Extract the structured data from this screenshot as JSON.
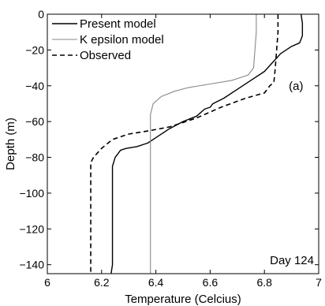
{
  "chart_data": {
    "type": "line",
    "xlabel": "Temperature (Celcius)",
    "ylabel": "Depth (m)",
    "xlim": [
      6,
      7
    ],
    "ylim": [
      -145,
      0
    ],
    "xticks": [
      6,
      6.2,
      6.4,
      6.6,
      6.8,
      7
    ],
    "xtick_labels": [
      "6",
      "6.2",
      "6.4",
      "6.6",
      "6.8",
      "7"
    ],
    "yticks": [
      0,
      -20,
      -40,
      -60,
      -80,
      -100,
      -120,
      -140
    ],
    "ytick_labels": [
      "0",
      "−20",
      "−40",
      "−60",
      "−80",
      "−100",
      "−120",
      "−140"
    ],
    "grid": false,
    "legend_position": "top-left",
    "annotations": [
      {
        "text": "(a)",
        "position": "right-upper"
      },
      {
        "text": "Day 124",
        "position": "bottom-right"
      }
    ],
    "series": [
      {
        "name": "Present model",
        "color": "#000000",
        "style": "solid",
        "x": [
          6.935,
          6.94,
          6.94,
          6.93,
          6.9,
          6.86,
          6.83,
          6.8,
          6.75,
          6.7,
          6.65,
          6.61,
          6.6,
          6.58,
          6.55,
          6.5,
          6.45,
          6.4,
          6.37,
          6.33,
          6.29,
          6.27,
          6.25,
          6.24,
          6.24,
          6.24,
          6.24,
          6.24,
          6.235
        ],
        "y": [
          0,
          -5,
          -12,
          -16,
          -18,
          -22,
          -27,
          -32,
          -37,
          -42,
          -47,
          -50,
          -52,
          -53,
          -57,
          -60,
          -64,
          -69,
          -72,
          -74,
          -75,
          -76,
          -80,
          -85,
          -90,
          -100,
          -120,
          -140,
          -145
        ]
      },
      {
        "name": "K epsilon model",
        "color": "#888888",
        "style": "solid",
        "x": [
          6.77,
          6.77,
          6.765,
          6.76,
          6.74,
          6.68,
          6.6,
          6.52,
          6.47,
          6.42,
          6.39,
          6.38,
          6.38,
          6.38,
          6.38,
          6.38
        ],
        "y": [
          0,
          -10,
          -20,
          -30,
          -34,
          -37,
          -39,
          -41,
          -43,
          -46,
          -50,
          -56,
          -70,
          -100,
          -130,
          -145
        ]
      },
      {
        "name": "Observed",
        "color": "#000000",
        "style": "dashed",
        "x": [
          6.85,
          6.85,
          6.845,
          6.84,
          6.835,
          6.82,
          6.8,
          6.73,
          6.64,
          6.55,
          6.45,
          6.38,
          6.3,
          6.24,
          6.2,
          6.17,
          6.16,
          6.16,
          6.16,
          6.16,
          6.16
        ],
        "y": [
          0,
          -10,
          -20,
          -30,
          -38,
          -40,
          -44,
          -47,
          -52,
          -58,
          -63,
          -65,
          -67,
          -70,
          -75,
          -80,
          -83,
          -90,
          -110,
          -130,
          -145
        ]
      }
    ]
  }
}
